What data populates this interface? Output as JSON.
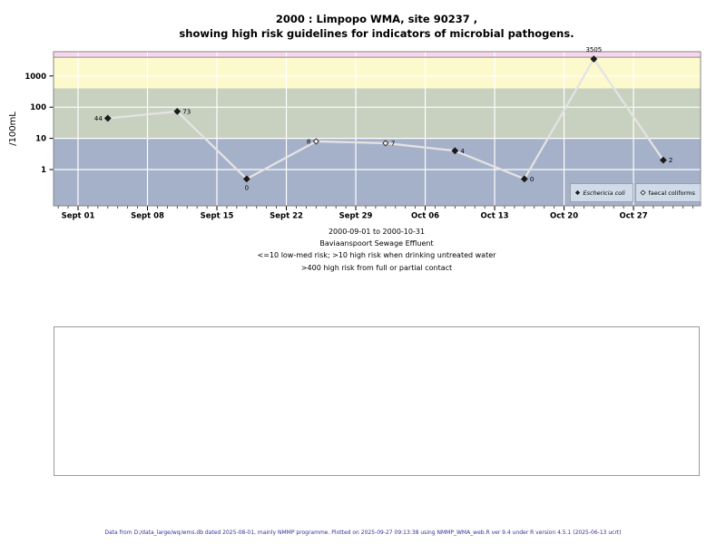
{
  "chart_data": {
    "type": "line",
    "title_lines": [
      "2000 : Limpopo WMA, site 90237 ,",
      "showing high risk guidelines for indicators of microbial pathogens."
    ],
    "ylabel": "/100mL",
    "y_scale": "log",
    "y_ticks": [
      "1",
      "10",
      "100",
      "1000"
    ],
    "x_ticks": [
      {
        "label": "Sept 01",
        "day": 0
      },
      {
        "label": "Sept 08",
        "day": 7
      },
      {
        "label": "Sept 15",
        "day": 14
      },
      {
        "label": "Sept 22",
        "day": 21
      },
      {
        "label": "Sept 29",
        "day": 28
      },
      {
        "label": "Oct 06",
        "day": 35
      },
      {
        "label": "Oct 13",
        "day": 42
      },
      {
        "label": "Oct 20",
        "day": 49
      },
      {
        "label": "Oct 27",
        "day": 56
      }
    ],
    "series": [
      {
        "name": "Eschericia coli",
        "marker": "filled-diamond",
        "points": [
          {
            "day": 3,
            "value": 44,
            "label": "44",
            "label_side": "left"
          },
          {
            "day": 10,
            "value": 73,
            "label": "73",
            "label_side": "right"
          },
          {
            "day": 17,
            "value": 0,
            "label": "0",
            "label_side": "below"
          },
          {
            "day": 38,
            "value": 4,
            "label": "4",
            "label_side": "right"
          },
          {
            "day": 45,
            "value": 0,
            "label": "0",
            "label_side": "right"
          },
          {
            "day": 52,
            "value": 3505,
            "label": "3505",
            "label_side": "above"
          },
          {
            "day": 59,
            "value": 2,
            "label": "2",
            "label_side": "right"
          }
        ]
      },
      {
        "name": "faecal coliforms",
        "marker": "open-diamond",
        "points": [
          {
            "day": 24,
            "value": 8,
            "label": "8",
            "label_side": "left"
          },
          {
            "day": 31,
            "value": 7,
            "label": "7",
            "label_side": "right"
          }
        ]
      }
    ],
    "bands": [
      {
        "label": "<=10 low-med risk",
        "upper": 10,
        "color": "#a5b0c9"
      },
      {
        "label": "10-400 high risk (drinking)",
        "upper": 400,
        "color": "#c8d0bf"
      },
      {
        "label": "400-4000 high risk (contact)",
        "upper": 4000,
        "color": "#fcfacd"
      },
      {
        "label": ">4000",
        "upper": null,
        "color": "#f7d6ee"
      }
    ],
    "guideline_value": 4000,
    "legend": [
      {
        "label": "Eschericia coli",
        "italic": true,
        "marker": "filled-diamond"
      },
      {
        "label": "faecal coliforms",
        "italic": false,
        "marker": "open-diamond"
      }
    ],
    "legend_position": "bottom-right"
  },
  "caption": {
    "lines": [
      "2000-09-01 to 2000-10-31",
      "Baviaanspoort Sewage Effluent",
      "<=10 low-med risk; >10 high risk when drinking untreated water",
      ">400 high risk from full or partial contact"
    ]
  },
  "footer": {
    "text": "Data from D:/data_large/wq/wms.db dated 2025-08-01, mainly NMMP programme. Plotted on 2025-09-27 09:13:38 using NMMP_WMA_web.R ver 9.4 under R version 4.5.1 (2025-06-13 ucrt)"
  },
  "colors": {
    "line": "#e3e3e3",
    "marker_fill": "#1a1a1a",
    "marker_stroke": "#2a2a2a",
    "grid": "#ffffff",
    "plot_border": "#848484",
    "guideline": "#8a8a8a",
    "legend_bg": "#cfdbe8",
    "legend_border": "#999999",
    "footer_text": "#333399"
  }
}
